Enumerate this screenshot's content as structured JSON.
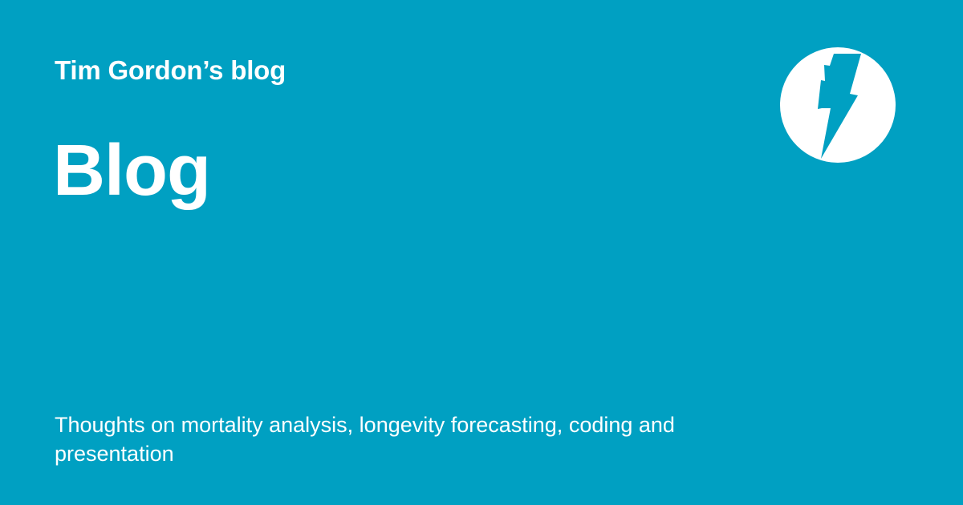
{
  "site": {
    "title": "Tim Gordon’s blog",
    "logo_icon": "lightning-bolt-icon"
  },
  "page": {
    "title": "Blog",
    "description": "Thoughts on mortality analysis, longevity forecasting, coding and presentation"
  },
  "colors": {
    "background": "#00a0c2",
    "text": "#ffffff",
    "logo_circle": "#ffffff",
    "logo_bolt": "#00a0c2"
  }
}
